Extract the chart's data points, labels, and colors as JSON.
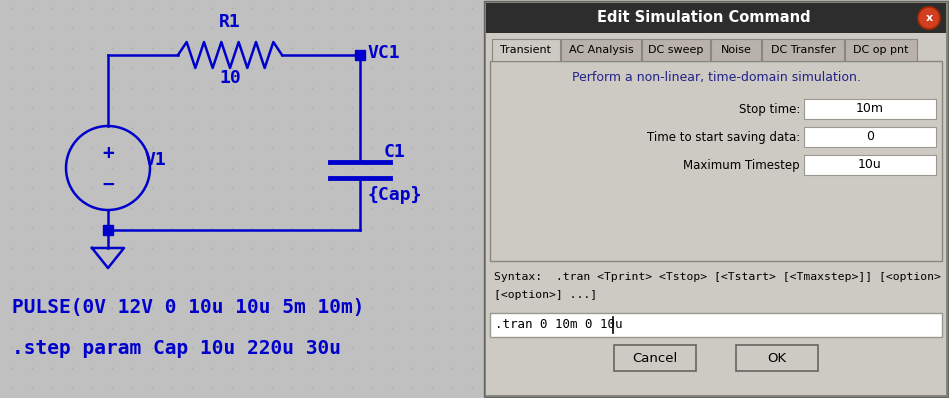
{
  "bg_color": "#c0c0c0",
  "wire_color": "#0000cc",
  "dialog_bg": "#cdc9c3",
  "dialog_body_bg": "#cdc9c3",
  "dialog_title_bg": "#2d2d2d",
  "dialog_title_text": "#ffffff",
  "dialog_title": "Edit Simulation Command",
  "tab_active": "Transient",
  "tabs": [
    "Transient",
    "AC Analysis",
    "DC sweep",
    "Noise",
    "DC Transfer",
    "DC op pnt"
  ],
  "tab_description": "Perform a non-linear, time-domain simulation.",
  "fields": [
    {
      "label": "Stop time:",
      "value": "10m"
    },
    {
      "label": "Time to start saving data:",
      "value": "0"
    },
    {
      "label": "Maximum Timestep",
      "value": "10u"
    }
  ],
  "syntax_line1": "Syntax:  .tran <Tprint> <Tstop> [<Tstart> [<Tmaxstep>]] [<option>",
  "syntax_line2": "[<option>] ...]",
  "command_text": ".tran 0 10m 0 10u",
  "cancel_btn": "Cancel",
  "ok_btn": "OK",
  "pulse_text": "PULSE(0V 12V 0 10u 10u 5m 10m)",
  "step_text": ".step param Cap 10u 220u 30u",
  "r1_label": "R1",
  "r1_value": "10",
  "c1_label": "C1",
  "c1_value": "{Cap}",
  "v1_label": "V1",
  "vc1_label": "VC1",
  "close_btn_color": "#d04020",
  "tab_bg_active": "#cdc9c3",
  "tab_bg_inactive": "#b8b2aa",
  "content_bg": "#cdc9c3",
  "field_box_bg": "#ffffff",
  "cmd_box_bg": "#ffffff",
  "btn_bg": "#cdc9c3"
}
